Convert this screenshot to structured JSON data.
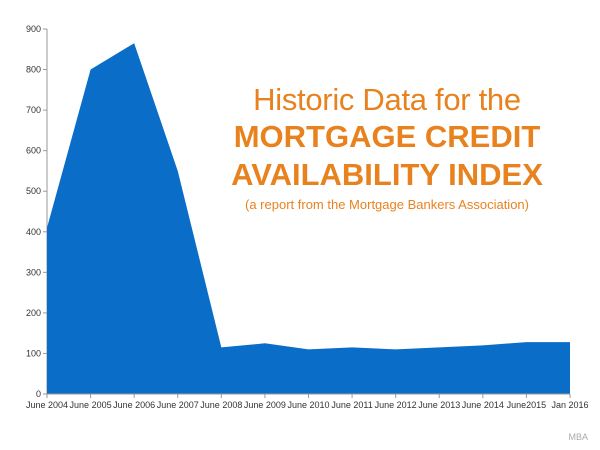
{
  "chart_data": {
    "type": "area",
    "title_line1": "Historic Data for the",
    "title_line2": "MORTGAGE CREDIT",
    "title_line3": "AVAILABILITY INDEX",
    "subtitle": "(a report from the Mortgage Bankers Association)",
    "categories": [
      "June 2004",
      "June 2005",
      "June 2006",
      "June 2007",
      "June 2008",
      "June 2009",
      "June 2010",
      "June 2011",
      "June 2012",
      "June 2013",
      "June 2014",
      "June2015",
      "Jan 2016"
    ],
    "values": [
      410,
      800,
      865,
      550,
      115,
      125,
      110,
      115,
      110,
      115,
      120,
      128,
      128
    ],
    "ylim": [
      0,
      900
    ],
    "yticks": [
      0,
      100,
      200,
      300,
      400,
      500,
      600,
      700,
      800,
      900
    ],
    "grid": false,
    "color": "#0a6ec9",
    "source": "MBA"
  }
}
